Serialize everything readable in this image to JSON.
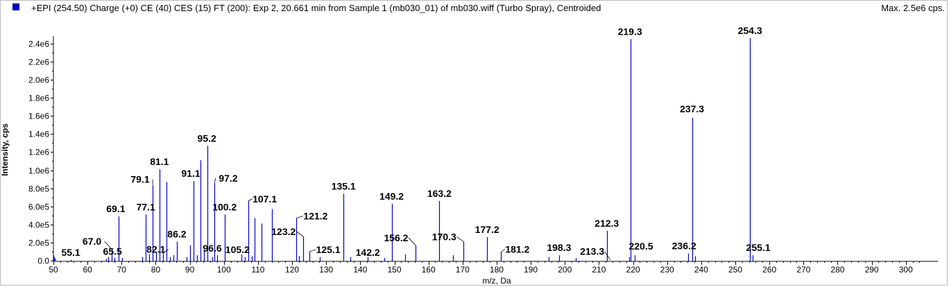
{
  "header": {
    "title": "+EPI (254.50) Charge (+0) CE (40) CES (15) FT (200): Exp 2, 20.661 min from Sample 1 (mb030_01) of mb030.wiff (Turbo Spray), Centroided",
    "max_label": "Max. 2.5e6 cps.",
    "series_color": "#0000cc"
  },
  "chart_data": {
    "type": "bar",
    "title": "+EPI (254.50) Charge (+0) CE (40) CES (15) FT (200): Exp 2, 20.661 min from Sample 1 (mb030_01) of mb030.wiff (Turbo Spray), Centroided",
    "xlabel": "m/z, Da",
    "ylabel": "Intensity, cps",
    "xlim": [
      50,
      305
    ],
    "ylim": [
      0,
      2500000.0
    ],
    "x_ticks": [
      50,
      60,
      70,
      80,
      90,
      100,
      110,
      120,
      130,
      140,
      150,
      160,
      170,
      180,
      190,
      200,
      210,
      220,
      230,
      240,
      250,
      260,
      270,
      280,
      290,
      300
    ],
    "y_ticks": [
      0,
      200000,
      400000,
      600000,
      800000,
      1000000,
      1200000,
      1400000,
      1600000,
      1800000,
      2000000,
      2200000,
      2400000
    ],
    "y_tick_labels": [
      "0.0",
      "2.0e5",
      "4.0e5",
      "6.0e5",
      "8.0e5",
      "1.0e6",
      "1.2e6",
      "1.4e6",
      "1.6e6",
      "1.8e6",
      "2.0e6",
      "2.2e6",
      "2.4e6"
    ],
    "grid": false,
    "peaks": [
      {
        "mz": 50.0,
        "i": 60000
      },
      {
        "mz": 55.1,
        "i": 8000
      },
      {
        "mz": 65.5,
        "i": 20000
      },
      {
        "mz": 66.1,
        "i": 40000
      },
      {
        "mz": 67.0,
        "i": 130000
      },
      {
        "mz": 68.0,
        "i": 30000
      },
      {
        "mz": 69.1,
        "i": 490000
      },
      {
        "mz": 70.1,
        "i": 30000
      },
      {
        "mz": 76.0,
        "i": 40000
      },
      {
        "mz": 77.1,
        "i": 510000
      },
      {
        "mz": 78.0,
        "i": 70000
      },
      {
        "mz": 79.1,
        "i": 830000
      },
      {
        "mz": 80.1,
        "i": 90000
      },
      {
        "mz": 81.1,
        "i": 1010000
      },
      {
        "mz": 82.1,
        "i": 80000
      },
      {
        "mz": 83.1,
        "i": 870000
      },
      {
        "mz": 84.1,
        "i": 40000
      },
      {
        "mz": 85.1,
        "i": 60000
      },
      {
        "mz": 86.2,
        "i": 210000
      },
      {
        "mz": 89.1,
        "i": 40000
      },
      {
        "mz": 90.1,
        "i": 170000
      },
      {
        "mz": 91.1,
        "i": 880000
      },
      {
        "mz": 92.1,
        "i": 60000
      },
      {
        "mz": 93.1,
        "i": 1110000
      },
      {
        "mz": 94.1,
        "i": 120000
      },
      {
        "mz": 95.2,
        "i": 1270000
      },
      {
        "mz": 96.6,
        "i": 40000
      },
      {
        "mz": 97.2,
        "i": 860000
      },
      {
        "mz": 98.1,
        "i": 60000
      },
      {
        "mz": 100.2,
        "i": 510000
      },
      {
        "mz": 105.2,
        "i": 70000
      },
      {
        "mz": 106.1,
        "i": 40000
      },
      {
        "mz": 107.1,
        "i": 660000
      },
      {
        "mz": 108.1,
        "i": 50000
      },
      {
        "mz": 109.1,
        "i": 470000
      },
      {
        "mz": 111.1,
        "i": 410000
      },
      {
        "mz": 114.1,
        "i": 570000
      },
      {
        "mz": 121.2,
        "i": 470000
      },
      {
        "mz": 122.1,
        "i": 50000
      },
      {
        "mz": 123.2,
        "i": 270000
      },
      {
        "mz": 125.1,
        "i": 100000
      },
      {
        "mz": 128.1,
        "i": 40000
      },
      {
        "mz": 135.1,
        "i": 740000
      },
      {
        "mz": 137.1,
        "i": 40000
      },
      {
        "mz": 142.2,
        "i": 40000
      },
      {
        "mz": 147.1,
        "i": 30000
      },
      {
        "mz": 149.2,
        "i": 630000
      },
      {
        "mz": 153.1,
        "i": 70000
      },
      {
        "mz": 156.2,
        "i": 170000
      },
      {
        "mz": 163.2,
        "i": 660000
      },
      {
        "mz": 167.1,
        "i": 60000
      },
      {
        "mz": 170.3,
        "i": 210000
      },
      {
        "mz": 177.2,
        "i": 260000
      },
      {
        "mz": 181.2,
        "i": 90000
      },
      {
        "mz": 195.2,
        "i": 40000
      },
      {
        "mz": 198.3,
        "i": 60000
      },
      {
        "mz": 203.2,
        "i": 30000
      },
      {
        "mz": 212.3,
        "i": 330000
      },
      {
        "mz": 218.8,
        "i": 40000
      },
      {
        "mz": 219.3,
        "i": 2450000
      },
      {
        "mz": 220.5,
        "i": 60000
      },
      {
        "mz": 236.2,
        "i": 80000
      },
      {
        "mz": 237.3,
        "i": 1580000
      },
      {
        "mz": 238.3,
        "i": 50000
      },
      {
        "mz": 254.3,
        "i": 2460000
      },
      {
        "mz": 255.1,
        "i": 60000
      }
    ],
    "peak_labels": [
      {
        "text": "55.1",
        "mz": 55.1,
        "i": 8000
      },
      {
        "text": "65.5",
        "mz": 65.5,
        "i": 20000
      },
      {
        "text": "67.0",
        "mz": 67.0,
        "i": 130000
      },
      {
        "text": "69.1",
        "mz": 69.1,
        "i": 490000
      },
      {
        "text": "77.1",
        "mz": 77.1,
        "i": 510000
      },
      {
        "text": "79.1",
        "mz": 79.1,
        "i": 830000
      },
      {
        "text": "81.1",
        "mz": 81.1,
        "i": 1010000
      },
      {
        "text": "82.1",
        "mz": 82.1,
        "i": 80000
      },
      {
        "text": "86.2",
        "mz": 86.2,
        "i": 210000
      },
      {
        "text": "91.1",
        "mz": 91.1,
        "i": 880000
      },
      {
        "text": "95.2",
        "mz": 95.2,
        "i": 1270000
      },
      {
        "text": "96.6",
        "mz": 96.6,
        "i": 40000
      },
      {
        "text": "97.2",
        "mz": 97.2,
        "i": 860000
      },
      {
        "text": "100.2",
        "mz": 100.2,
        "i": 510000
      },
      {
        "text": "105.2",
        "mz": 105.2,
        "i": 70000
      },
      {
        "text": "107.1",
        "mz": 107.1,
        "i": 660000
      },
      {
        "text": "121.2",
        "mz": 121.2,
        "i": 470000
      },
      {
        "text": "123.2",
        "mz": 123.2,
        "i": 270000
      },
      {
        "text": "125.1",
        "mz": 125.1,
        "i": 100000
      },
      {
        "text": "135.1",
        "mz": 135.1,
        "i": 740000
      },
      {
        "text": "142.2",
        "mz": 142.2,
        "i": 40000
      },
      {
        "text": "149.2",
        "mz": 149.2,
        "i": 630000
      },
      {
        "text": "156.2",
        "mz": 156.2,
        "i": 170000
      },
      {
        "text": "163.2",
        "mz": 163.2,
        "i": 660000
      },
      {
        "text": "170.3",
        "mz": 170.3,
        "i": 210000
      },
      {
        "text": "177.2",
        "mz": 177.2,
        "i": 260000
      },
      {
        "text": "181.2",
        "mz": 181.2,
        "i": 90000
      },
      {
        "text": "198.3",
        "mz": 198.3,
        "i": 60000
      },
      {
        "text": "212.3",
        "mz": 212.3,
        "i": 330000
      },
      {
        "text": "213.3",
        "mz": 213.3,
        "i": 10000
      },
      {
        "text": "219.3",
        "mz": 219.3,
        "i": 2450000
      },
      {
        "text": "220.5",
        "mz": 220.5,
        "i": 60000
      },
      {
        "text": "236.2",
        "mz": 236.2,
        "i": 80000
      },
      {
        "text": "237.3",
        "mz": 237.3,
        "i": 1580000
      },
      {
        "text": "254.3",
        "mz": 254.3,
        "i": 2460000
      },
      {
        "text": "255.1",
        "mz": 255.1,
        "i": 60000
      }
    ]
  }
}
